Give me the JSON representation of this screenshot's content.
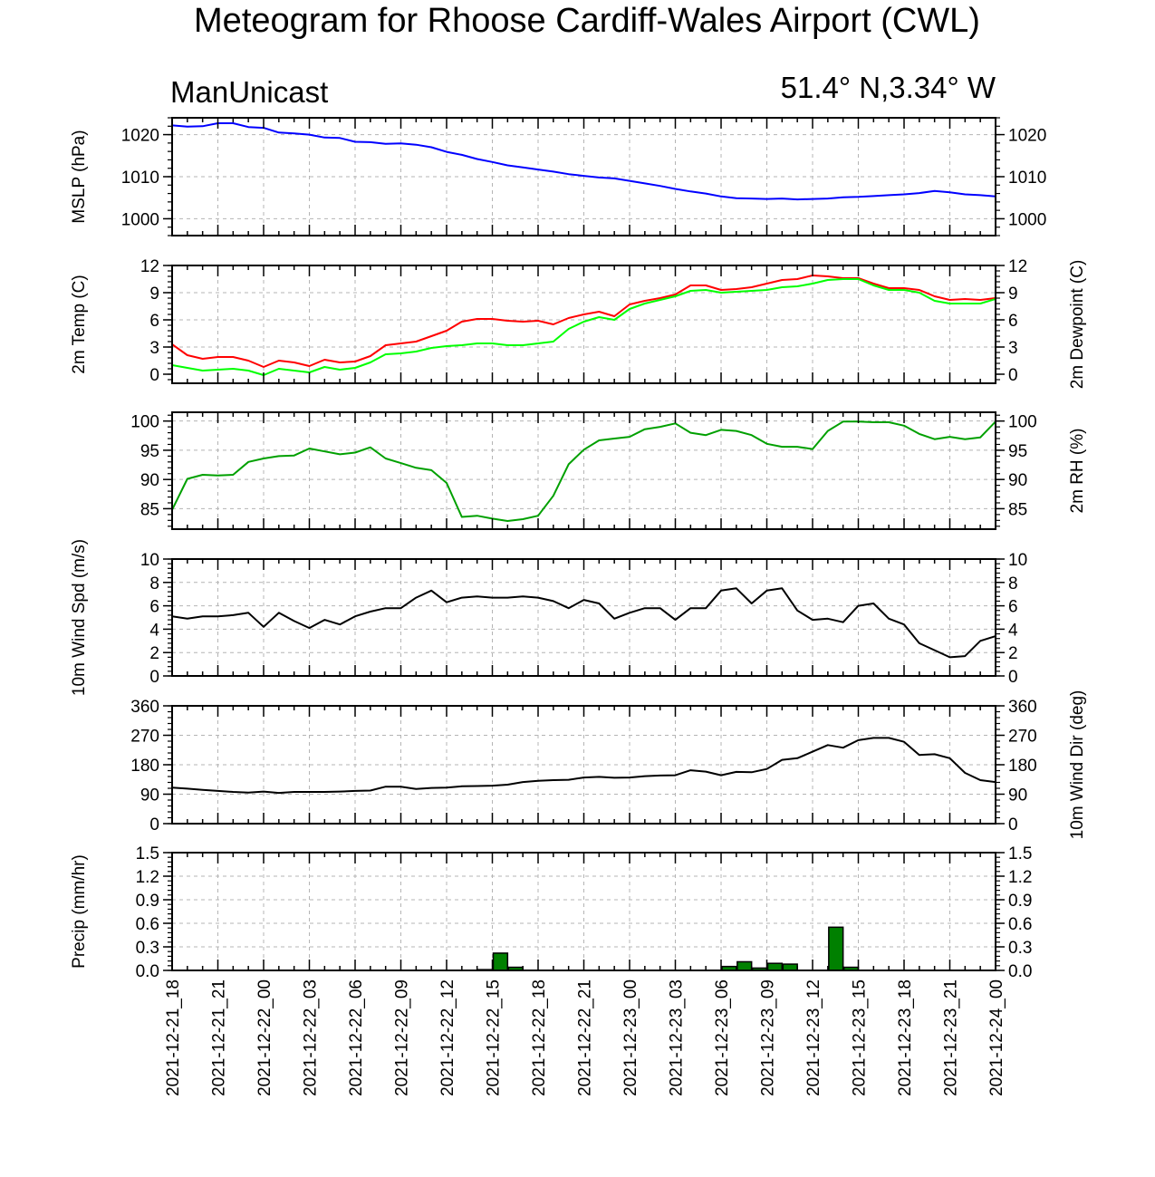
{
  "header": {
    "title": "Meteogram for Rhoose Cardiff-Wales Airport (CWL)",
    "model": "ManUnicast",
    "location": "51.4° N,3.34° W"
  },
  "chart_data": {
    "type": "meteogram",
    "x_labels": [
      "2021-12-21_18",
      "2021-12-21_21",
      "2021-12-22_00",
      "2021-12-22_03",
      "2021-12-22_06",
      "2021-12-22_09",
      "2021-12-22_12",
      "2021-12-22_15",
      "2021-12-22_18",
      "2021-12-22_21",
      "2021-12-23_00",
      "2021-12-23_03",
      "2021-12-23_06",
      "2021-12-23_09",
      "2021-12-23_12",
      "2021-12-23_15",
      "2021-12-23_18",
      "2021-12-23_21",
      "2021-12-24_00"
    ],
    "xlim_hours": [
      0,
      54
    ],
    "hours": [
      0,
      1,
      2,
      3,
      4,
      5,
      6,
      7,
      8,
      9,
      10,
      11,
      12,
      13,
      14,
      15,
      16,
      17,
      18,
      19,
      20,
      21,
      22,
      23,
      24,
      25,
      26,
      27,
      28,
      29,
      30,
      31,
      32,
      33,
      34,
      35,
      36,
      37,
      38,
      39,
      40,
      41,
      42,
      43,
      44,
      45,
      46,
      47,
      48,
      49,
      50,
      51,
      52,
      53,
      54
    ],
    "panels": [
      {
        "id": "mslp",
        "left_label": "MSLP (hPa)",
        "right_label": "",
        "ylim": [
          996,
          1024
        ],
        "yticks": [
          1000,
          1010,
          1020
        ],
        "right_ticks": true,
        "grid_y": [
          1000,
          1010,
          1020
        ],
        "series": [
          {
            "color": "#0000ff",
            "values": [
              1022.2,
              1021.9,
              1022.0,
              1022.7,
              1022.7,
              1021.8,
              1021.6,
              1020.5,
              1020.3,
              1020.0,
              1019.3,
              1019.2,
              1018.3,
              1018.2,
              1017.8,
              1017.9,
              1017.6,
              1017.0,
              1015.9,
              1015.2,
              1014.2,
              1013.5,
              1012.7,
              1012.2,
              1011.7,
              1011.2,
              1010.6,
              1010.2,
              1009.8,
              1009.6,
              1009.0,
              1008.4,
              1007.8,
              1007.1,
              1006.5,
              1006.0,
              1005.3,
              1004.9,
              1004.8,
              1004.7,
              1004.8,
              1004.6,
              1004.7,
              1004.8,
              1005.1,
              1005.2,
              1005.4,
              1005.6,
              1005.8,
              1006.1,
              1006.6,
              1006.3,
              1005.8,
              1005.6,
              1005.3
            ]
          }
        ]
      },
      {
        "id": "temp",
        "left_label": "2m Temp (C)",
        "right_label": "2m Dewpoint (C)",
        "ylim": [
          -1,
          12
        ],
        "yticks": [
          0,
          3,
          6,
          9,
          12
        ],
        "right_ticks": true,
        "grid_y": [
          3,
          6,
          9
        ],
        "series": [
          {
            "color": "#ff0000",
            "values": [
              3.3,
              2.1,
              1.7,
              1.9,
              1.9,
              1.5,
              0.8,
              1.5,
              1.3,
              0.9,
              1.6,
              1.3,
              1.4,
              2.0,
              3.2,
              3.4,
              3.6,
              4.2,
              4.8,
              5.8,
              6.1,
              6.1,
              5.9,
              5.8,
              5.9,
              5.5,
              6.2,
              6.6,
              6.9,
              6.4,
              7.7,
              8.1,
              8.4,
              8.8,
              9.8,
              9.8,
              9.3,
              9.4,
              9.6,
              10.0,
              10.4,
              10.5,
              10.9,
              10.8,
              10.6,
              10.6,
              10.0,
              9.5,
              9.5,
              9.3,
              8.6,
              8.2,
              8.3,
              8.2,
              8.4
            ]
          },
          {
            "color": "#00ff00",
            "values": [
              1.0,
              0.7,
              0.4,
              0.5,
              0.6,
              0.4,
              -0.1,
              0.6,
              0.4,
              0.2,
              0.8,
              0.5,
              0.7,
              1.3,
              2.2,
              2.3,
              2.5,
              2.9,
              3.1,
              3.2,
              3.4,
              3.4,
              3.2,
              3.2,
              3.4,
              3.6,
              5.0,
              5.8,
              6.3,
              6.0,
              7.2,
              7.8,
              8.2,
              8.6,
              9.2,
              9.3,
              9.0,
              9.1,
              9.2,
              9.3,
              9.6,
              9.7,
              10.0,
              10.4,
              10.5,
              10.5,
              9.8,
              9.3,
              9.3,
              9.0,
              8.1,
              7.8,
              7.8,
              7.8,
              8.3
            ]
          }
        ]
      },
      {
        "id": "rh",
        "left_label": "",
        "right_label": "2m RH (%)",
        "ylim": [
          81.5,
          101.5
        ],
        "yticks": [
          85,
          90,
          95,
          100
        ],
        "right_ticks": true,
        "grid_y": [
          85,
          90,
          95,
          100
        ],
        "series": [
          {
            "color": "#00a000",
            "values": [
              84.8,
              90.1,
              90.8,
              90.7,
              90.8,
              93.0,
              93.6,
              94.0,
              94.1,
              95.3,
              94.8,
              94.3,
              94.6,
              95.5,
              93.6,
              92.8,
              92.0,
              91.6,
              89.4,
              83.6,
              83.8,
              83.3,
              82.9,
              83.2,
              83.8,
              87.2,
              92.6,
              95.1,
              96.7,
              97.0,
              97.3,
              98.6,
              99.0,
              99.6,
              98.0,
              97.6,
              98.5,
              98.3,
              97.6,
              96.1,
              95.6,
              95.6,
              95.2,
              98.3,
              99.9,
              99.9,
              99.8,
              99.8,
              99.2,
              97.8,
              96.9,
              97.3,
              96.9,
              97.2,
              99.9
            ]
          }
        ]
      },
      {
        "id": "wspd",
        "left_label": "10m Wind Spd (m/s)",
        "right_label": "",
        "ylim": [
          0,
          10
        ],
        "yticks": [
          0,
          2,
          4,
          6,
          8,
          10
        ],
        "right_ticks": true,
        "grid_y": [
          2,
          4,
          6,
          8
        ],
        "series": [
          {
            "color": "#000000",
            "values": [
              5.1,
              4.9,
              5.1,
              5.1,
              5.2,
              5.4,
              4.2,
              5.4,
              4.7,
              4.1,
              4.8,
              4.4,
              5.1,
              5.5,
              5.8,
              5.8,
              6.7,
              7.3,
              6.3,
              6.7,
              6.8,
              6.7,
              6.7,
              6.8,
              6.7,
              6.4,
              5.8,
              6.5,
              6.2,
              4.9,
              5.4,
              5.8,
              5.8,
              4.8,
              5.8,
              5.8,
              7.3,
              7.5,
              6.2,
              7.3,
              7.5,
              5.6,
              4.8,
              4.9,
              4.6,
              6.0,
              6.2,
              4.9,
              4.4,
              2.8,
              2.2,
              1.6,
              1.7,
              3.0,
              3.4
            ]
          }
        ]
      },
      {
        "id": "wdir",
        "left_label": "",
        "right_label": "10m Wind Dir (deg)",
        "ylim": [
          0,
          360
        ],
        "yticks": [
          0,
          90,
          180,
          270,
          360
        ],
        "right_ticks": true,
        "grid_y": [
          90,
          180,
          270
        ],
        "series": [
          {
            "color": "#000000",
            "values": [
              110,
              107,
              103,
              100,
              97,
              95,
              98,
              94,
              97,
              97,
              97,
              98,
              100,
              101,
              113,
              113,
              106,
              109,
              110,
              114,
              115,
              116,
              119,
              127,
              131,
              133,
              134,
              141,
              143,
              140,
              141,
              145,
              147,
              148,
              163,
              159,
              148,
              158,
              157,
              167,
              195,
              200,
              220,
              240,
              232,
              255,
              262,
              262,
              250,
              210,
              212,
              200,
              155,
              133,
              127
            ]
          }
        ]
      },
      {
        "id": "precip",
        "left_label": "Precip (mm/hr)",
        "right_label": "",
        "ylim": [
          0,
          1.5
        ],
        "yticks": [
          0.0,
          0.3,
          0.6,
          0.9,
          1.2,
          1.5
        ],
        "right_ticks": true,
        "grid_y": [
          0.3,
          0.6,
          0.9,
          1.2
        ],
        "bars": {
          "color": "#008000",
          "start_hours": [
            20,
            21,
            22,
            36,
            37,
            38,
            39,
            40,
            43,
            44
          ],
          "values": [
            0.01,
            0.22,
            0.04,
            0.05,
            0.11,
            0.03,
            0.09,
            0.08,
            0.55,
            0.04
          ]
        }
      }
    ]
  }
}
